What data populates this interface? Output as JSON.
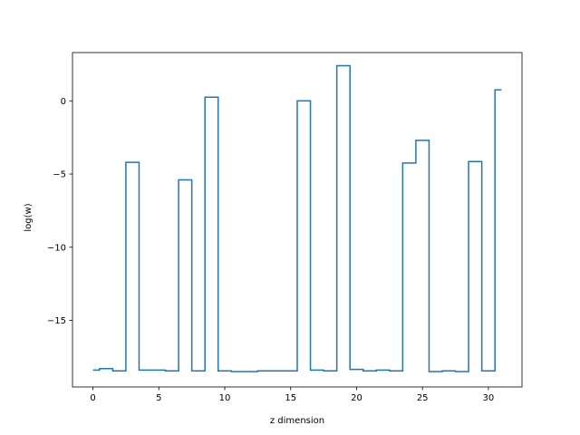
{
  "chart_data": {
    "type": "line",
    "drawstyle": "steps-mid",
    "title": "",
    "xlabel": "z dimension",
    "ylabel": "log(w)",
    "xlim": [
      -1.55,
      32.55
    ],
    "ylim": [
      -19.55,
      3.3
    ],
    "xticks": [
      0,
      5,
      10,
      15,
      20,
      25,
      30
    ],
    "yticks": [
      0,
      -5,
      -10,
      -15
    ],
    "grid": false,
    "legend": "none",
    "series": [
      {
        "color": "#1f77b4",
        "x": [
          0,
          1,
          2,
          3,
          4,
          5,
          6,
          7,
          8,
          9,
          10,
          11,
          12,
          13,
          14,
          15,
          16,
          17,
          18,
          19,
          20,
          21,
          22,
          23,
          24,
          25,
          26,
          27,
          28,
          29,
          30,
          31
        ],
        "y": [
          -18.4,
          -18.3,
          -18.45,
          -4.2,
          -18.4,
          -18.4,
          -18.45,
          -5.4,
          -18.45,
          0.25,
          -18.45,
          -18.5,
          -18.5,
          -18.45,
          -18.45,
          -18.45,
          0.0,
          -18.4,
          -18.45,
          2.4,
          -18.35,
          -18.45,
          -18.4,
          -18.45,
          -4.25,
          -2.7,
          -18.5,
          -18.45,
          -18.5,
          -4.15,
          -18.45,
          0.75
        ]
      }
    ]
  }
}
